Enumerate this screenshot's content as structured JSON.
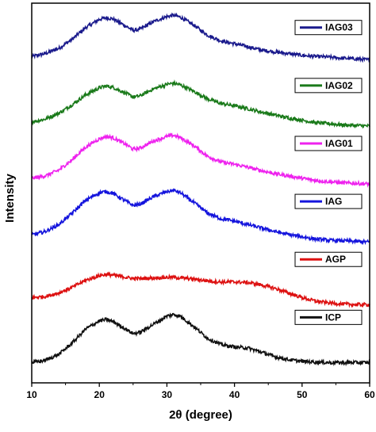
{
  "chart_data": {
    "type": "line",
    "xlabel": "2θ (degree)",
    "ylabel": "Intensity",
    "xlim": [
      10,
      60
    ],
    "xticks": [
      10,
      20,
      30,
      40,
      50,
      60
    ],
    "grid": false,
    "legend": "per-series boxes at right of each curve",
    "series": [
      {
        "name": "IAG03",
        "color": "#1a1a8c",
        "offset": 5,
        "x": [
          10,
          12,
          14,
          16,
          18,
          20,
          21,
          22,
          24,
          25,
          26,
          28,
          30,
          31,
          32,
          34,
          36,
          38,
          40,
          42,
          44,
          46,
          48,
          50,
          52,
          54,
          56,
          58,
          60
        ],
        "y": [
          0.28,
          0.33,
          0.42,
          0.58,
          0.78,
          0.92,
          0.95,
          0.93,
          0.8,
          0.73,
          0.75,
          0.88,
          0.97,
          0.99,
          0.96,
          0.82,
          0.65,
          0.55,
          0.5,
          0.45,
          0.39,
          0.36,
          0.33,
          0.3,
          0.28,
          0.27,
          0.25,
          0.24,
          0.22
        ]
      },
      {
        "name": "IAG02",
        "color": "#1a7a1a",
        "offset": 4,
        "x": [
          10,
          12,
          14,
          16,
          18,
          20,
          21,
          22,
          24,
          25,
          26,
          28,
          30,
          31,
          32,
          34,
          36,
          38,
          40,
          42,
          44,
          46,
          48,
          50,
          52,
          54,
          56,
          58,
          60
        ],
        "y": [
          0.15,
          0.2,
          0.3,
          0.45,
          0.62,
          0.74,
          0.77,
          0.75,
          0.64,
          0.58,
          0.6,
          0.72,
          0.8,
          0.82,
          0.79,
          0.68,
          0.55,
          0.47,
          0.43,
          0.38,
          0.32,
          0.27,
          0.22,
          0.18,
          0.14,
          0.12,
          0.1,
          0.09,
          0.08
        ]
      },
      {
        "name": "IAG01",
        "color": "#ee22ee",
        "offset": 3,
        "x": [
          10,
          12,
          14,
          16,
          18,
          20,
          21,
          22,
          24,
          25,
          26,
          28,
          30,
          31,
          32,
          34,
          36,
          38,
          40,
          42,
          44,
          46,
          48,
          50,
          52,
          54,
          56,
          58,
          60
        ],
        "y": [
          0.18,
          0.22,
          0.32,
          0.5,
          0.72,
          0.86,
          0.9,
          0.88,
          0.76,
          0.68,
          0.7,
          0.82,
          0.9,
          0.92,
          0.88,
          0.74,
          0.56,
          0.46,
          0.42,
          0.37,
          0.31,
          0.26,
          0.22,
          0.18,
          0.14,
          0.12,
          0.1,
          0.09,
          0.08
        ]
      },
      {
        "name": "IAG",
        "color": "#1515dd",
        "offset": 2,
        "x": [
          10,
          12,
          14,
          16,
          18,
          20,
          21,
          22,
          24,
          25,
          26,
          28,
          30,
          31,
          32,
          34,
          36,
          38,
          40,
          42,
          44,
          46,
          48,
          50,
          52,
          54,
          56,
          58,
          60
        ],
        "y": [
          0.2,
          0.26,
          0.38,
          0.58,
          0.8,
          0.93,
          0.95,
          0.92,
          0.78,
          0.71,
          0.73,
          0.86,
          0.95,
          0.97,
          0.93,
          0.76,
          0.58,
          0.48,
          0.44,
          0.38,
          0.32,
          0.26,
          0.21,
          0.17,
          0.13,
          0.11,
          0.1,
          0.09,
          0.08
        ]
      },
      {
        "name": "AGP",
        "color": "#dd1111",
        "offset": 1,
        "x": [
          10,
          12,
          14,
          16,
          18,
          20,
          21,
          22,
          24,
          25,
          26,
          28,
          30,
          31,
          32,
          34,
          36,
          38,
          40,
          42,
          44,
          46,
          48,
          50,
          52,
          54,
          56,
          58,
          60
        ],
        "y": [
          0.12,
          0.14,
          0.2,
          0.3,
          0.42,
          0.5,
          0.52,
          0.51,
          0.47,
          0.45,
          0.45,
          0.46,
          0.47,
          0.47,
          0.46,
          0.44,
          0.41,
          0.39,
          0.39,
          0.38,
          0.34,
          0.28,
          0.2,
          0.12,
          0.06,
          0.03,
          0.01,
          0.0,
          0.0
        ]
      },
      {
        "name": "ICP",
        "color": "#111111",
        "offset": 0,
        "x": [
          10,
          12,
          14,
          16,
          18,
          20,
          21,
          22,
          24,
          25,
          26,
          28,
          30,
          31,
          32,
          34,
          36,
          38,
          40,
          42,
          44,
          46,
          48,
          50,
          52,
          54,
          56,
          58,
          60
        ],
        "y": [
          0.0,
          0.04,
          0.14,
          0.34,
          0.58,
          0.72,
          0.74,
          0.71,
          0.57,
          0.5,
          0.52,
          0.66,
          0.8,
          0.83,
          0.8,
          0.62,
          0.42,
          0.31,
          0.27,
          0.25,
          0.18,
          0.1,
          0.05,
          0.02,
          0.01,
          0.0,
          0.0,
          0.0,
          0.0
        ]
      }
    ]
  }
}
